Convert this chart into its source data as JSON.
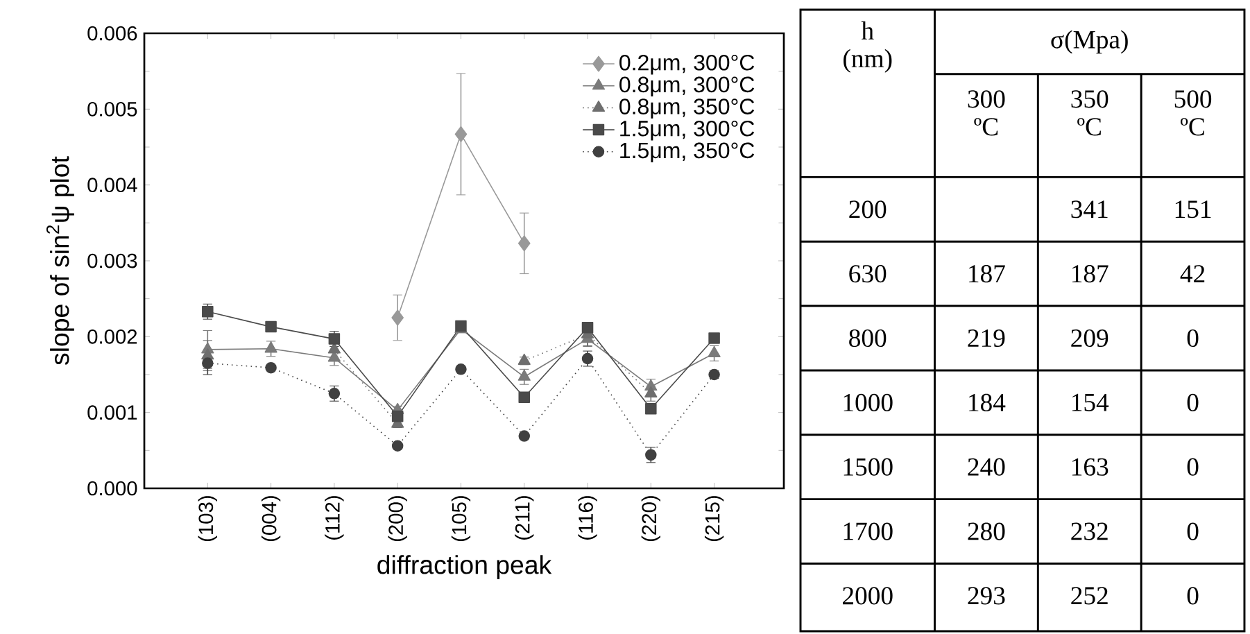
{
  "chart_data": [
    {
      "type": "line",
      "xlabel": "diffraction peak",
      "ylabel": "slope of sin$^{2}$ψ plot",
      "categories": [
        "(103)",
        "(004)",
        "(112)",
        "(200)",
        "(105)",
        "(211)",
        "(116)",
        "(220)",
        "(215)"
      ],
      "ylim": [
        0,
        0.006
      ],
      "yticks": [
        {
          "value": 0,
          "label": "0.000"
        },
        {
          "value": 0.001,
          "label": "0.001"
        },
        {
          "value": 0.002,
          "label": "0.002"
        },
        {
          "value": 0.003,
          "label": "0.003"
        },
        {
          "value": 0.004,
          "label": "0.004"
        },
        {
          "value": 0.005,
          "label": "0.005"
        },
        {
          "value": 0.006,
          "label": "0.006"
        }
      ],
      "legend": "top right",
      "grid": false,
      "series": [
        {
          "name": "0.2μm, 300°C",
          "color": "#999999",
          "marker": "diamond",
          "line_style": "solid",
          "values": [
            null,
            null,
            null,
            0.00225,
            0.00467,
            0.00323,
            null,
            null,
            null
          ],
          "errors": [
            null,
            null,
            null,
            0.0003,
            0.0008,
            0.0004,
            null,
            null,
            null
          ]
        },
        {
          "name": "0.8μm, 300°C",
          "color": "#7a7a7a",
          "marker": "triangle",
          "line_style": "solid",
          "values": [
            0.00183,
            0.00184,
            0.00172,
            0.00103,
            0.0021,
            0.00147,
            0.00197,
            0.00134,
            0.00178
          ],
          "errors": [
            0.00025,
            0.0001,
            0.0001,
            5e-05,
            5e-05,
            0.0001,
            0.0001,
            0.0001,
            0.0001
          ]
        },
        {
          "name": "0.8μm, 350°C",
          "color": "#6e6e6e",
          "marker": "triangle",
          "line_style": "dotted",
          "values": [
            0.00175,
            null,
            0.00183,
            0.00085,
            null,
            0.00168,
            0.00203,
            0.00125,
            null
          ],
          "errors": [
            0.0002,
            null,
            0.00015,
            5e-05,
            null,
            5e-05,
            0.00015,
            0.0001,
            null
          ]
        },
        {
          "name": "1.5μm, 300°C",
          "color": "#4a4a4a",
          "marker": "square",
          "line_style": "solid",
          "values": [
            0.00233,
            0.00213,
            0.00197,
            0.00095,
            0.00214,
            0.0012,
            0.00212,
            0.00105,
            0.00198
          ],
          "errors": [
            0.0001,
            5e-05,
            0.0001,
            5e-05,
            5e-05,
            null,
            5e-05,
            5e-05,
            5e-05
          ]
        },
        {
          "name": "1.5μm, 350°C",
          "color": "#404040",
          "marker": "circle",
          "line_style": "dotted",
          "values": [
            0.00165,
            0.00159,
            0.00125,
            0.00056,
            0.00157,
            0.00069,
            0.00171,
            0.00044,
            0.0015
          ],
          "errors": [
            0.00015,
            null,
            0.0001,
            null,
            null,
            null,
            0.0001,
            0.0001,
            5e-05
          ]
        }
      ]
    },
    {
      "type": "heatmap",
      "xlabel": "σ(Mpa)",
      "ylabel": "h (nm)",
      "categories": [
        "300 ºC",
        "350 ºC",
        "500 ºC"
      ],
      "y_categories": [
        "200",
        "630",
        "800",
        "1000",
        "1500",
        "1700",
        "2000"
      ],
      "cells": [
        [
          null,
          341,
          151
        ],
        [
          187,
          187,
          42
        ],
        [
          219,
          209,
          0
        ],
        [
          184,
          154,
          0
        ],
        [
          240,
          163,
          0
        ],
        [
          280,
          232,
          0
        ],
        [
          293,
          252,
          0
        ]
      ],
      "data_labels": true
    }
  ]
}
